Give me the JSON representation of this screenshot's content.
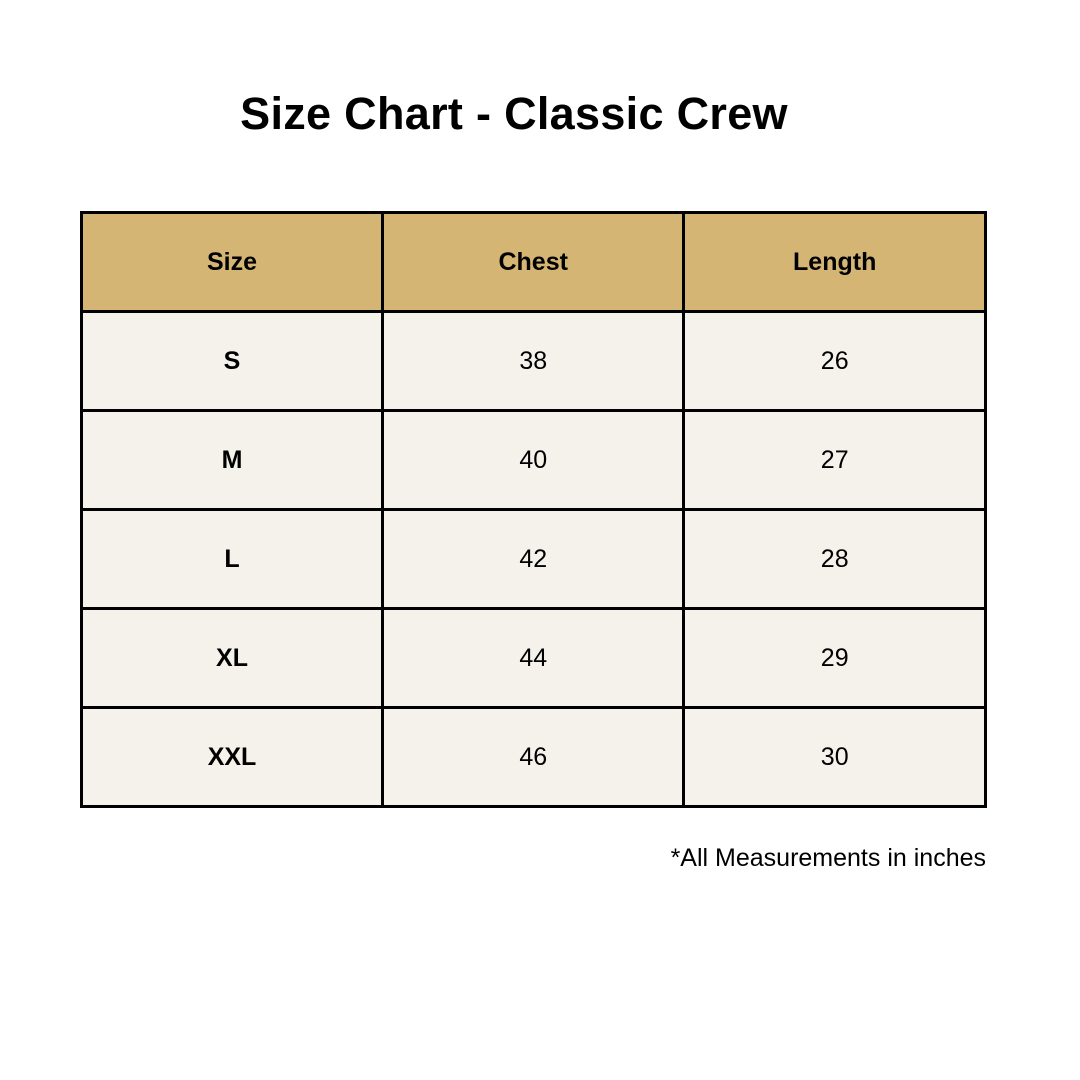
{
  "title": "Size Chart - Classic Crew",
  "colors": {
    "header_bg": "#D4B574",
    "body_bg": "#F4F2EA",
    "border": "#000000"
  },
  "table": {
    "headers": [
      "Size",
      "Chest",
      "Length"
    ],
    "rows": [
      [
        "S",
        "38",
        "26"
      ],
      [
        "M",
        "40",
        "27"
      ],
      [
        "L",
        "42",
        "28"
      ],
      [
        "XL",
        "44",
        "29"
      ],
      [
        "XXL",
        "46",
        "30"
      ]
    ]
  },
  "note": "*All Measurements in inches"
}
